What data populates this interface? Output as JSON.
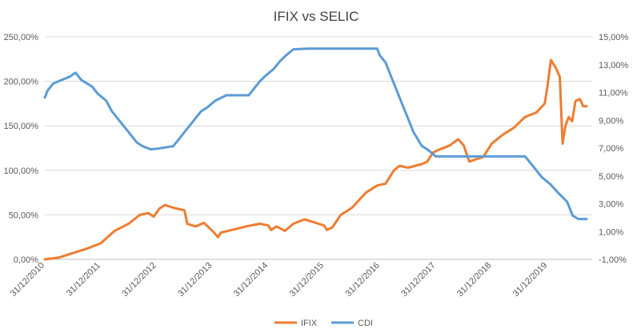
{
  "chart_data": {
    "type": "line",
    "title": "IFIX vs SELIC",
    "x_tick_labels": [
      "31/12/2010",
      "31/12/2011",
      "31/12/2012",
      "31/12/2013",
      "31/12/2014",
      "31/12/2015",
      "31/12/2016",
      "31/12/2017",
      "31/12/2018",
      "31/12/2019"
    ],
    "y_left": {
      "ticks": [
        "0,00%",
        "50,00%",
        "100,00%",
        "150,00%",
        "200,00%",
        "250,00%"
      ],
      "ylim": [
        0,
        250
      ]
    },
    "y_right": {
      "ticks": [
        "-1,00%",
        "1,00%",
        "3,00%",
        "5,00%",
        "7,00%",
        "9,00%",
        "11,00%",
        "13,00%",
        "15,00%"
      ],
      "ylim": [
        -1,
        15
      ]
    },
    "xlim": [
      2011.0,
      2020.8
    ],
    "grid": true,
    "legend_position": "bottom",
    "series": [
      {
        "name": "IFIX",
        "axis": "left",
        "color": "#ED7D31",
        "points": [
          [
            2011.0,
            0
          ],
          [
            2011.25,
            2
          ],
          [
            2011.5,
            7
          ],
          [
            2011.75,
            12
          ],
          [
            2012.0,
            18
          ],
          [
            2012.25,
            32
          ],
          [
            2012.5,
            40
          ],
          [
            2012.7,
            50
          ],
          [
            2012.85,
            52
          ],
          [
            2012.95,
            48
          ],
          [
            2013.05,
            57
          ],
          [
            2013.15,
            61
          ],
          [
            2013.3,
            58
          ],
          [
            2013.5,
            55
          ],
          [
            2013.55,
            40
          ],
          [
            2013.7,
            37
          ],
          [
            2013.85,
            41
          ],
          [
            2014.0,
            32
          ],
          [
            2014.1,
            25
          ],
          [
            2014.15,
            30
          ],
          [
            2014.35,
            33
          ],
          [
            2014.6,
            37
          ],
          [
            2014.85,
            40
          ],
          [
            2015.0,
            38
          ],
          [
            2015.05,
            33
          ],
          [
            2015.15,
            37
          ],
          [
            2015.3,
            32
          ],
          [
            2015.45,
            40
          ],
          [
            2015.65,
            45
          ],
          [
            2015.75,
            43
          ],
          [
            2015.9,
            40
          ],
          [
            2016.0,
            38
          ],
          [
            2016.05,
            33
          ],
          [
            2016.15,
            36
          ],
          [
            2016.3,
            50
          ],
          [
            2016.5,
            58
          ],
          [
            2016.75,
            75
          ],
          [
            2016.95,
            83
          ],
          [
            2017.1,
            85
          ],
          [
            2017.25,
            100
          ],
          [
            2017.35,
            105
          ],
          [
            2017.5,
            103
          ],
          [
            2017.75,
            107
          ],
          [
            2017.85,
            110
          ],
          [
            2017.95,
            120
          ],
          [
            2018.05,
            123
          ],
          [
            2018.25,
            128
          ],
          [
            2018.4,
            135
          ],
          [
            2018.5,
            128
          ],
          [
            2018.6,
            110
          ],
          [
            2018.7,
            112
          ],
          [
            2018.85,
            115
          ],
          [
            2019.0,
            130
          ],
          [
            2019.2,
            140
          ],
          [
            2019.4,
            148
          ],
          [
            2019.6,
            160
          ],
          [
            2019.8,
            165
          ],
          [
            2019.95,
            175
          ],
          [
            2020.0,
            195
          ],
          [
            2020.06,
            224
          ],
          [
            2020.15,
            215
          ],
          [
            2020.22,
            205
          ],
          [
            2020.27,
            130
          ],
          [
            2020.32,
            150
          ],
          [
            2020.38,
            160
          ],
          [
            2020.44,
            155
          ],
          [
            2020.5,
            178
          ],
          [
            2020.58,
            180
          ],
          [
            2020.64,
            172
          ],
          [
            2020.7,
            172
          ]
        ]
      },
      {
        "name": "CDI",
        "axis": "right",
        "color": "#5B9BD5",
        "points": [
          [
            2011.0,
            10.64
          ],
          [
            2011.05,
            11.14
          ],
          [
            2011.15,
            11.64
          ],
          [
            2011.3,
            11.89
          ],
          [
            2011.45,
            12.14
          ],
          [
            2011.55,
            12.42
          ],
          [
            2011.65,
            11.91
          ],
          [
            2011.85,
            11.41
          ],
          [
            2011.95,
            10.9
          ],
          [
            2012.1,
            10.4
          ],
          [
            2012.2,
            9.65
          ],
          [
            2012.35,
            8.9
          ],
          [
            2012.45,
            8.4
          ],
          [
            2012.55,
            7.9
          ],
          [
            2012.65,
            7.39
          ],
          [
            2012.75,
            7.14
          ],
          [
            2012.9,
            6.9
          ],
          [
            2013.05,
            6.98
          ],
          [
            2013.3,
            7.14
          ],
          [
            2013.4,
            7.64
          ],
          [
            2013.5,
            8.15
          ],
          [
            2013.6,
            8.65
          ],
          [
            2013.7,
            9.15
          ],
          [
            2013.8,
            9.65
          ],
          [
            2013.9,
            9.9
          ],
          [
            2014.05,
            10.4
          ],
          [
            2014.25,
            10.8
          ],
          [
            2014.65,
            10.8
          ],
          [
            2014.75,
            11.3
          ],
          [
            2014.85,
            11.8
          ],
          [
            2014.95,
            12.2
          ],
          [
            2015.1,
            12.7
          ],
          [
            2015.2,
            13.2
          ],
          [
            2015.3,
            13.6
          ],
          [
            2015.45,
            14.1
          ],
          [
            2015.7,
            14.15
          ],
          [
            2016.95,
            14.15
          ],
          [
            2017.0,
            13.65
          ],
          [
            2017.1,
            13.15
          ],
          [
            2017.2,
            12.15
          ],
          [
            2017.3,
            11.15
          ],
          [
            2017.4,
            10.15
          ],
          [
            2017.5,
            9.15
          ],
          [
            2017.6,
            8.15
          ],
          [
            2017.75,
            7.15
          ],
          [
            2017.85,
            6.9
          ],
          [
            2018.0,
            6.4
          ],
          [
            2019.6,
            6.4
          ],
          [
            2019.7,
            5.9
          ],
          [
            2019.8,
            5.4
          ],
          [
            2019.9,
            4.9
          ],
          [
            2020.05,
            4.4
          ],
          [
            2020.2,
            3.75
          ],
          [
            2020.35,
            3.15
          ],
          [
            2020.45,
            2.15
          ],
          [
            2020.55,
            1.9
          ],
          [
            2020.7,
            1.9
          ]
        ]
      }
    ]
  }
}
